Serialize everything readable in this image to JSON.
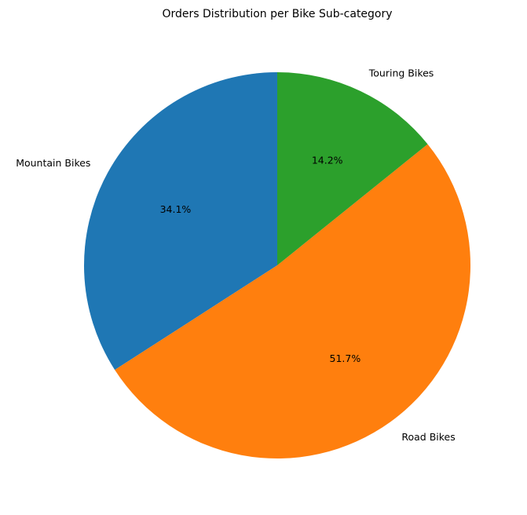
{
  "chart_data": {
    "type": "pie",
    "title": "Orders Distribution per Bike Sub-category",
    "start_angle_deg": 90,
    "direction": "counterclockwise",
    "slices": [
      {
        "label": "Mountain Bikes",
        "value": 34.1,
        "pct_label": "34.1%",
        "color": "#1f77b4"
      },
      {
        "label": "Road Bikes",
        "value": 51.7,
        "pct_label": "51.7%",
        "color": "#ff7f0e"
      },
      {
        "label": "Touring Bikes",
        "value": 14.2,
        "pct_label": "14.2%",
        "color": "#2ca02c"
      }
    ]
  }
}
